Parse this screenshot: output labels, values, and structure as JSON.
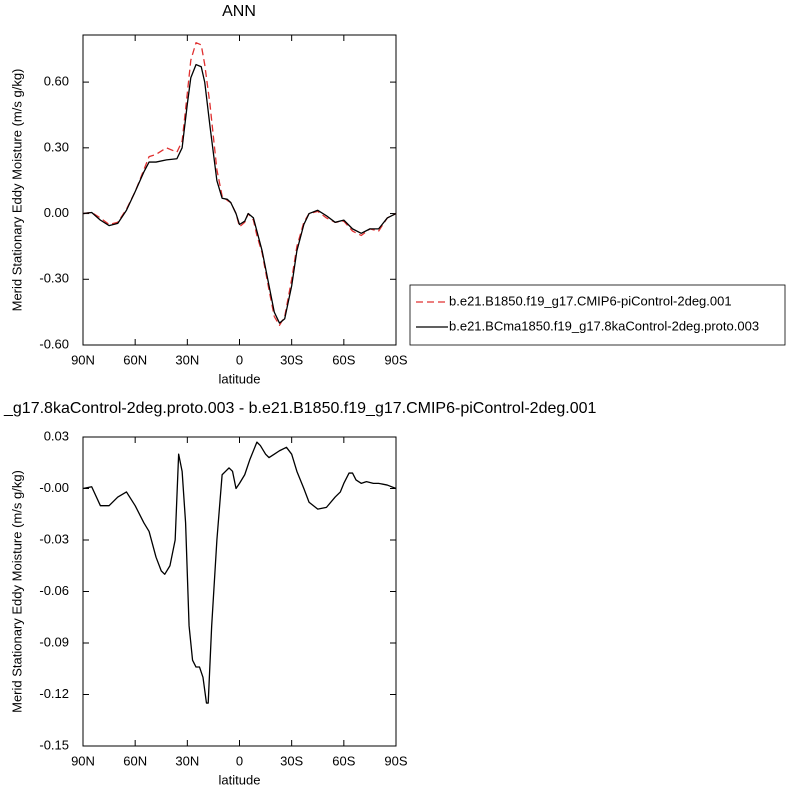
{
  "chart_data": [
    {
      "type": "line",
      "title": "ANN",
      "xlabel": "latitude",
      "ylabel": "Merid Stationary Eddy Moisture (m/s g/kg)",
      "x": [
        90,
        85,
        80,
        75,
        70,
        65,
        60,
        55,
        52,
        48,
        42,
        36,
        33,
        30,
        28,
        25,
        22,
        20,
        17,
        13,
        10,
        7,
        5,
        2,
        0,
        -3,
        -5,
        -8,
        -10,
        -13,
        -17,
        -20,
        -23,
        -26,
        -30,
        -33,
        -37,
        -40,
        -45,
        -50,
        -55,
        -60,
        -65,
        -70,
        -75,
        -80,
        -85,
        -90
      ],
      "series": [
        {
          "name": "b.e21.B1850.f19_g17.CMIP6-piControl-2deg.001",
          "color": "#e03030",
          "dash": true,
          "values": [
            0.0,
            0.005,
            -0.02,
            -0.05,
            -0.04,
            0.02,
            0.1,
            0.2,
            0.26,
            0.27,
            0.3,
            0.28,
            0.33,
            0.55,
            0.7,
            0.78,
            0.77,
            0.68,
            0.5,
            0.2,
            0.08,
            0.06,
            0.05,
            0.0,
            -0.06,
            -0.04,
            0.0,
            -0.03,
            -0.1,
            -0.18,
            -0.35,
            -0.47,
            -0.51,
            -0.47,
            -0.3,
            -0.15,
            -0.04,
            0.0,
            0.01,
            -0.02,
            -0.04,
            -0.035,
            -0.08,
            -0.1,
            -0.07,
            -0.08,
            -0.02,
            0.0
          ]
        },
        {
          "name": "b.e21.BCma1850.f19_g17.8kaControl-2deg.proto.003",
          "color": "#000000",
          "dash": false,
          "values": [
            0.0,
            0.005,
            -0.03,
            -0.055,
            -0.045,
            0.015,
            0.1,
            0.19,
            0.235,
            0.235,
            0.245,
            0.25,
            0.3,
            0.5,
            0.62,
            0.68,
            0.67,
            0.6,
            0.4,
            0.15,
            0.07,
            0.065,
            0.05,
            0.0,
            -0.05,
            -0.035,
            0.0,
            -0.02,
            -0.08,
            -0.17,
            -0.33,
            -0.45,
            -0.5,
            -0.48,
            -0.33,
            -0.17,
            -0.05,
            0.0,
            0.015,
            -0.01,
            -0.04,
            -0.03,
            -0.07,
            -0.09,
            -0.07,
            -0.07,
            -0.02,
            0.0
          ]
        }
      ],
      "xlim": [
        90,
        -90
      ],
      "xticks": [
        {
          "value": 90,
          "label": "90N"
        },
        {
          "value": 60,
          "label": "60N"
        },
        {
          "value": 30,
          "label": "30N"
        },
        0,
        {
          "value": -30,
          "label": "30S"
        },
        {
          "value": -60,
          "label": "60S"
        },
        {
          "value": -90,
          "label": "90S"
        }
      ],
      "ylim": [
        -0.6,
        0.815
      ],
      "yticks": [
        {
          "value": 0.6,
          "label": "0.60"
        },
        {
          "value": 0.3,
          "label": "0.30"
        },
        {
          "value": 0,
          "label": "0.00"
        },
        {
          "value": -0.3,
          "label": "-0.30"
        },
        {
          "value": -0.6,
          "label": "-0.60"
        }
      ]
    },
    {
      "type": "line",
      "title": "_g17.8kaControl-2deg.proto.003 - b.e21.B1850.f19_g17.CMIP6-piControl-2deg.001",
      "xlabel": "latitude",
      "ylabel": "Merid Stationary Eddy Moisture (m/s g/kg)",
      "x": [
        90,
        85,
        80,
        75,
        70,
        65,
        60,
        55,
        52,
        48,
        45,
        43,
        40,
        37,
        35,
        33,
        31,
        29,
        27,
        25,
        23,
        21,
        19,
        18,
        16,
        13,
        10,
        8,
        6,
        4,
        2,
        0,
        -3,
        -6,
        -10,
        -12,
        -15,
        -17,
        -20,
        -23,
        -27,
        -30,
        -33,
        -37,
        -40,
        -45,
        -50,
        -55,
        -58,
        -60,
        -63,
        -65,
        -67,
        -70,
        -73,
        -77,
        -80,
        -85,
        -90
      ],
      "color": "#000000",
      "values": [
        0,
        0.001,
        -0.01,
        -0.01,
        -0.005,
        -0.002,
        -0.01,
        -0.02,
        -0.025,
        -0.04,
        -0.048,
        -0.05,
        -0.045,
        -0.03,
        0.02,
        0.01,
        -0.02,
        -0.08,
        -0.1,
        -0.104,
        -0.104,
        -0.11,
        -0.125,
        -0.125,
        -0.08,
        -0.03,
        0.008,
        0.01,
        0.012,
        0.01,
        0.0,
        0.003,
        0.008,
        0.017,
        0.027,
        0.025,
        0.02,
        0.018,
        0.02,
        0.022,
        0.024,
        0.02,
        0.01,
        0.0,
        -0.008,
        -0.012,
        -0.011,
        -0.005,
        -0.002,
        0.003,
        0.009,
        0.009,
        0.005,
        0.003,
        0.004,
        0.003,
        0.003,
        0.002,
        0.0
      ],
      "xlim": [
        90,
        -90
      ],
      "xticks": [
        {
          "value": 90,
          "label": "90N"
        },
        {
          "value": 60,
          "label": "60N"
        },
        {
          "value": 30,
          "label": "30N"
        },
        0,
        {
          "value": -30,
          "label": "30S"
        },
        {
          "value": -60,
          "label": "60S"
        },
        {
          "value": -90,
          "label": "90S"
        }
      ],
      "ylim": [
        -0.15,
        0.03
      ],
      "yticks": [
        {
          "value": 0.03,
          "label": "0.03"
        },
        {
          "value": 0,
          "label": "-0.00"
        },
        {
          "value": -0.03,
          "label": "-0.03"
        },
        {
          "value": -0.06,
          "label": "-0.06"
        },
        {
          "value": -0.09,
          "label": "-0.09"
        },
        {
          "value": -0.12,
          "label": "-0.12"
        },
        {
          "value": -0.15,
          "label": "-0.15"
        }
      ]
    }
  ]
}
